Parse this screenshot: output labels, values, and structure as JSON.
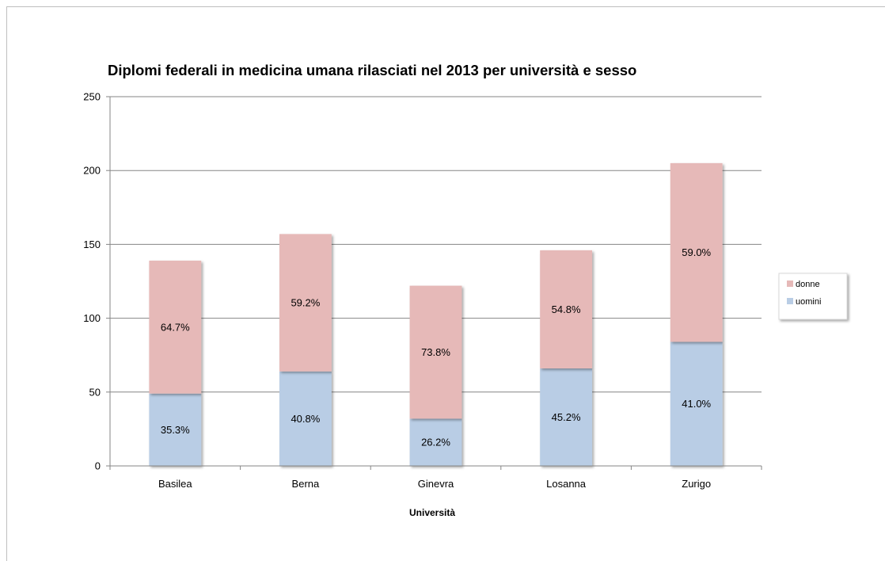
{
  "chart_data": {
    "type": "bar",
    "stacked": true,
    "title": "Diplomi federali in medicina umana rilasciati nel 2013 per università e sesso",
    "xlabel": "Università",
    "ylabel": "",
    "ylim": [
      0,
      250
    ],
    "yticks": [
      0,
      50,
      100,
      150,
      200,
      250
    ],
    "grid": true,
    "legend_position": "right",
    "categories": [
      "Basilea",
      "Berna",
      "Ginevra",
      "Losanna",
      "Zurigo"
    ],
    "series": [
      {
        "name": "uomini",
        "color": "#b9cde5",
        "values": [
          49,
          64,
          32,
          66,
          84
        ],
        "labels": [
          "35.3%",
          "40.8%",
          "26.2%",
          "45.2%",
          "41.0%"
        ]
      },
      {
        "name": "donne",
        "color": "#e6b9b8",
        "values": [
          90,
          93,
          90,
          80,
          121
        ],
        "labels": [
          "64.7%",
          "59.2%",
          "73.8%",
          "54.8%",
          "59.0%"
        ]
      }
    ],
    "legend_order": [
      "donne",
      "uomini"
    ]
  }
}
